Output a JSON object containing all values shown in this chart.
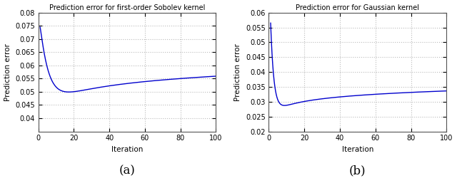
{
  "title_a": "Prediction error for first-order Sobolev kernel",
  "title_b": "Prediction error for Gaussian kernel",
  "xlabel": "Iteration",
  "ylabel": "Prediction error",
  "label_a": "(a)",
  "label_b": "(b)",
  "xlim": [
    0,
    100
  ],
  "ylim_a": [
    0.035,
    0.08
  ],
  "ylim_b": [
    0.02,
    0.06
  ],
  "yticks_a": [
    0.04,
    0.045,
    0.05,
    0.055,
    0.06,
    0.065,
    0.07,
    0.075,
    0.08
  ],
  "yticks_b": [
    0.02,
    0.025,
    0.03,
    0.035,
    0.04,
    0.045,
    0.05,
    0.055,
    0.06
  ],
  "xticks": [
    0,
    20,
    40,
    60,
    80,
    100
  ],
  "line_color": "#0000cd",
  "background_color": "#ffffff",
  "grid_color": "#bbbbbb"
}
